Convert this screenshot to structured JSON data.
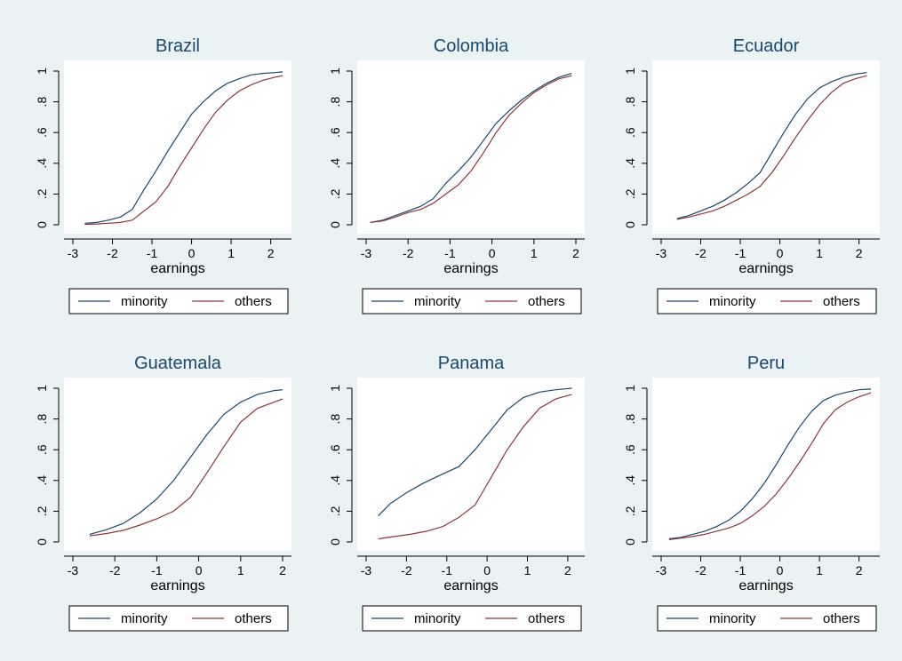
{
  "colors": {
    "background": "#eaf2f3",
    "plot_area": "#ffffff",
    "minority": "#1a476f",
    "others": "#90353b",
    "text": "#000000",
    "title": "#1a476f"
  },
  "chart_data": [
    {
      "type": "line",
      "title": "Brazil",
      "xlabel": "earnings",
      "ylabel": "",
      "xlim": [
        -3,
        2.3
      ],
      "ylim": [
        0,
        1
      ],
      "xticks": [
        "-3",
        "-2",
        "-1",
        "0",
        "1",
        "2"
      ],
      "yticks": [
        "0",
        ".2",
        ".4",
        ".6",
        ".8",
        "1"
      ],
      "grid": false,
      "legend": "bottom",
      "series": [
        {
          "name": "minority",
          "x": [
            -2.7,
            -2.4,
            -2.1,
            -1.8,
            -1.5,
            -1.2,
            -0.9,
            -0.6,
            -0.3,
            0,
            0.3,
            0.6,
            0.9,
            1.2,
            1.5,
            1.8,
            2.1,
            2.3
          ],
          "y": [
            0.01,
            0.015,
            0.03,
            0.05,
            0.1,
            0.23,
            0.35,
            0.48,
            0.6,
            0.72,
            0.8,
            0.87,
            0.92,
            0.95,
            0.975,
            0.985,
            0.99,
            0.995
          ]
        },
        {
          "name": "others",
          "x": [
            -2.7,
            -2.4,
            -2.1,
            -1.8,
            -1.5,
            -1.2,
            -0.9,
            -0.6,
            -0.3,
            0,
            0.3,
            0.6,
            0.9,
            1.2,
            1.5,
            1.8,
            2.1,
            2.3
          ],
          "y": [
            0.003,
            0.005,
            0.01,
            0.015,
            0.03,
            0.09,
            0.15,
            0.25,
            0.38,
            0.5,
            0.62,
            0.73,
            0.81,
            0.87,
            0.91,
            0.94,
            0.96,
            0.97
          ]
        }
      ]
    },
    {
      "type": "line",
      "title": "Colombia",
      "xlabel": "earnings",
      "ylabel": "",
      "xlim": [
        -3,
        2
      ],
      "ylim": [
        0,
        1
      ],
      "xticks": [
        "-3",
        "-2",
        "-1",
        "0",
        "1",
        "2"
      ],
      "yticks": [
        "0",
        ".2",
        ".4",
        ".6",
        ".8",
        "1"
      ],
      "grid": false,
      "legend": "bottom",
      "series": [
        {
          "name": "minority",
          "x": [
            -2.9,
            -2.6,
            -2.3,
            -2.0,
            -1.7,
            -1.4,
            -1.1,
            -0.8,
            -0.5,
            -0.2,
            0.1,
            0.4,
            0.7,
            1.0,
            1.3,
            1.6,
            1.9
          ],
          "y": [
            0.015,
            0.03,
            0.06,
            0.09,
            0.12,
            0.17,
            0.27,
            0.35,
            0.44,
            0.55,
            0.66,
            0.74,
            0.81,
            0.87,
            0.92,
            0.96,
            0.985
          ]
        },
        {
          "name": "others",
          "x": [
            -2.9,
            -2.6,
            -2.3,
            -2.0,
            -1.7,
            -1.4,
            -1.1,
            -0.8,
            -0.5,
            -0.2,
            0.1,
            0.4,
            0.7,
            1.0,
            1.3,
            1.6,
            1.9
          ],
          "y": [
            0.015,
            0.025,
            0.05,
            0.08,
            0.1,
            0.14,
            0.2,
            0.26,
            0.35,
            0.47,
            0.6,
            0.71,
            0.79,
            0.86,
            0.91,
            0.95,
            0.97
          ]
        }
      ]
    },
    {
      "type": "line",
      "title": "Ecuador",
      "xlabel": "earnings",
      "ylabel": "",
      "xlim": [
        -3,
        2.3
      ],
      "ylim": [
        0,
        1
      ],
      "xticks": [
        "-3",
        "-2",
        "-1",
        "0",
        "1",
        "2"
      ],
      "yticks": [
        "0",
        ".2",
        ".4",
        ".6",
        ".8",
        "1"
      ],
      "grid": false,
      "legend": "bottom",
      "series": [
        {
          "name": "minority",
          "x": [
            -2.6,
            -2.3,
            -2.0,
            -1.7,
            -1.4,
            -1.1,
            -0.8,
            -0.5,
            -0.2,
            0.1,
            0.4,
            0.7,
            1.0,
            1.3,
            1.6,
            1.9,
            2.2
          ],
          "y": [
            0.04,
            0.06,
            0.09,
            0.12,
            0.16,
            0.21,
            0.27,
            0.34,
            0.47,
            0.6,
            0.72,
            0.82,
            0.89,
            0.93,
            0.96,
            0.98,
            0.99
          ]
        },
        {
          "name": "others",
          "x": [
            -2.6,
            -2.3,
            -2.0,
            -1.7,
            -1.4,
            -1.1,
            -0.8,
            -0.5,
            -0.2,
            0.1,
            0.4,
            0.7,
            1.0,
            1.3,
            1.6,
            1.9,
            2.2
          ],
          "y": [
            0.035,
            0.05,
            0.07,
            0.09,
            0.12,
            0.16,
            0.2,
            0.25,
            0.34,
            0.45,
            0.57,
            0.68,
            0.78,
            0.86,
            0.92,
            0.95,
            0.97
          ]
        }
      ]
    },
    {
      "type": "line",
      "title": "Guatemala",
      "xlabel": "earnings",
      "ylabel": "",
      "xlim": [
        -3,
        2
      ],
      "ylim": [
        0,
        1
      ],
      "xticks": [
        "-3",
        "-2",
        "-1",
        "0",
        "1",
        "2"
      ],
      "yticks": [
        "0",
        ".2",
        ".4",
        ".6",
        ".8",
        "1"
      ],
      "grid": false,
      "legend": "bottom",
      "series": [
        {
          "name": "minority",
          "x": [
            -2.6,
            -2.2,
            -1.8,
            -1.4,
            -1.0,
            -0.6,
            -0.2,
            0.2,
            0.6,
            1.0,
            1.4,
            1.8,
            2.0
          ],
          "y": [
            0.05,
            0.08,
            0.12,
            0.19,
            0.28,
            0.4,
            0.55,
            0.7,
            0.83,
            0.91,
            0.96,
            0.985,
            0.99
          ]
        },
        {
          "name": "others",
          "x": [
            -2.6,
            -2.2,
            -1.8,
            -1.4,
            -1.0,
            -0.6,
            -0.2,
            0.2,
            0.6,
            1.0,
            1.4,
            1.8,
            2.0
          ],
          "y": [
            0.04,
            0.055,
            0.075,
            0.11,
            0.15,
            0.2,
            0.29,
            0.45,
            0.62,
            0.78,
            0.87,
            0.91,
            0.93
          ]
        }
      ]
    },
    {
      "type": "line",
      "title": "Panama",
      "xlabel": "earnings",
      "ylabel": "",
      "xlim": [
        -3,
        2.2
      ],
      "ylim": [
        0,
        1
      ],
      "xticks": [
        "-3",
        "-2",
        "-1",
        "0",
        "1",
        "2"
      ],
      "yticks": [
        "0",
        ".2",
        ".4",
        ".6",
        ".8",
        "1"
      ],
      "grid": false,
      "legend": "bottom",
      "series": [
        {
          "name": "minority",
          "x": [
            -2.7,
            -2.4,
            -2.0,
            -1.6,
            -1.2,
            -0.7,
            -0.3,
            0.1,
            0.5,
            0.9,
            1.3,
            1.7,
            2.1
          ],
          "y": [
            0.17,
            0.25,
            0.32,
            0.38,
            0.43,
            0.49,
            0.6,
            0.73,
            0.86,
            0.94,
            0.975,
            0.99,
            1.0
          ]
        },
        {
          "name": "others",
          "x": [
            -2.7,
            -2.3,
            -1.9,
            -1.5,
            -1.1,
            -0.7,
            -0.3,
            0.1,
            0.5,
            0.9,
            1.3,
            1.7,
            2.1
          ],
          "y": [
            0.02,
            0.035,
            0.05,
            0.07,
            0.1,
            0.16,
            0.24,
            0.42,
            0.6,
            0.75,
            0.87,
            0.93,
            0.96
          ]
        }
      ]
    },
    {
      "type": "line",
      "title": "Peru",
      "xlabel": "earnings",
      "ylabel": "",
      "xlim": [
        -3,
        2.3
      ],
      "ylim": [
        0,
        1
      ],
      "xticks": [
        "-3",
        "-2",
        "-1",
        "0",
        "1",
        "2"
      ],
      "yticks": [
        "0",
        ".2",
        ".4",
        ".6",
        ".8",
        "1"
      ],
      "grid": false,
      "legend": "bottom",
      "series": [
        {
          "name": "minority",
          "x": [
            -2.8,
            -2.5,
            -2.2,
            -1.9,
            -1.6,
            -1.3,
            -1.0,
            -0.7,
            -0.4,
            -0.1,
            0.2,
            0.5,
            0.8,
            1.1,
            1.4,
            1.7,
            2.0,
            2.3
          ],
          "y": [
            0.02,
            0.03,
            0.05,
            0.07,
            0.1,
            0.14,
            0.2,
            0.28,
            0.38,
            0.5,
            0.63,
            0.75,
            0.85,
            0.92,
            0.955,
            0.975,
            0.99,
            0.995
          ]
        },
        {
          "name": "others",
          "x": [
            -2.8,
            -2.5,
            -2.2,
            -1.9,
            -1.6,
            -1.3,
            -1.0,
            -0.7,
            -0.4,
            -0.1,
            0.2,
            0.5,
            0.8,
            1.1,
            1.4,
            1.7,
            2.0,
            2.3
          ],
          "y": [
            0.015,
            0.025,
            0.035,
            0.05,
            0.07,
            0.09,
            0.12,
            0.17,
            0.23,
            0.31,
            0.41,
            0.52,
            0.64,
            0.77,
            0.86,
            0.91,
            0.945,
            0.97
          ]
        }
      ]
    }
  ]
}
